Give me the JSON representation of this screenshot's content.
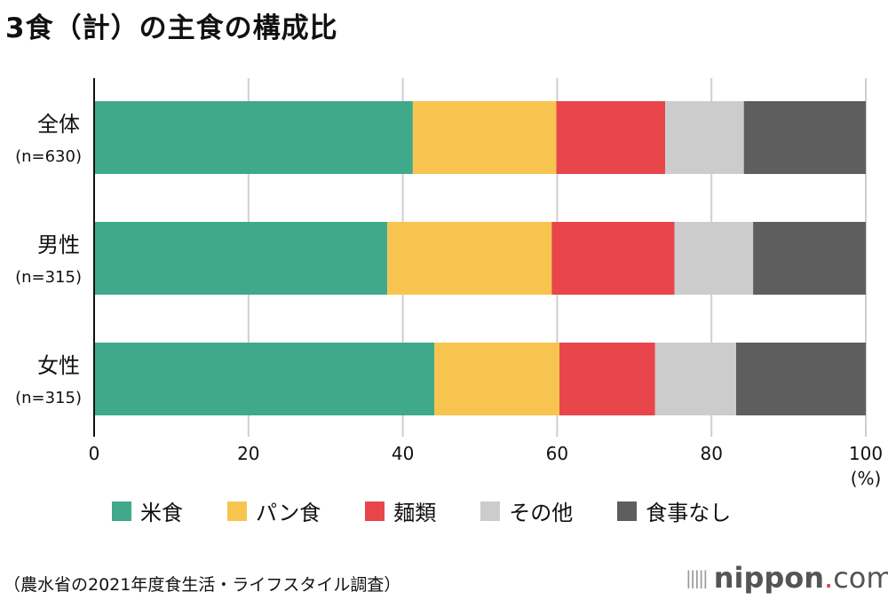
{
  "chart_data": {
    "type": "bar",
    "orientation": "horizontal",
    "stacked": true,
    "title": "3食（計）の主食の構成比",
    "categories": [
      {
        "label": "全体",
        "n": "(n=630)"
      },
      {
        "label": "男性",
        "n": "(n=315)"
      },
      {
        "label": "女性",
        "n": "(n=315)"
      }
    ],
    "series": [
      {
        "name": "米食",
        "color": "#40a98a",
        "values": [
          41.3,
          38.0,
          44.1
        ]
      },
      {
        "name": "パン食",
        "color": "#f7c54f",
        "values": [
          18.6,
          21.3,
          16.2
        ]
      },
      {
        "name": "麺類",
        "color": "#e8464b",
        "values": [
          14.1,
          15.9,
          12.4
        ]
      },
      {
        "name": "その他",
        "color": "#cccccc",
        "values": [
          10.2,
          10.2,
          10.5
        ]
      },
      {
        "name": "食事なし",
        "color": "#5e5e5e",
        "values": [
          15.8,
          14.6,
          16.8
        ]
      }
    ],
    "xlim": [
      0,
      100
    ],
    "xticks": [
      "0",
      "20",
      "40",
      "60",
      "80",
      "100"
    ],
    "xunit": "(%)",
    "grid": true,
    "legend": "bottom"
  },
  "source": "（農水省の2021年度食生活・ライフスタイル調査）",
  "logo": {
    "name": "nippon",
    "dot": ".",
    "suffix": "com"
  }
}
